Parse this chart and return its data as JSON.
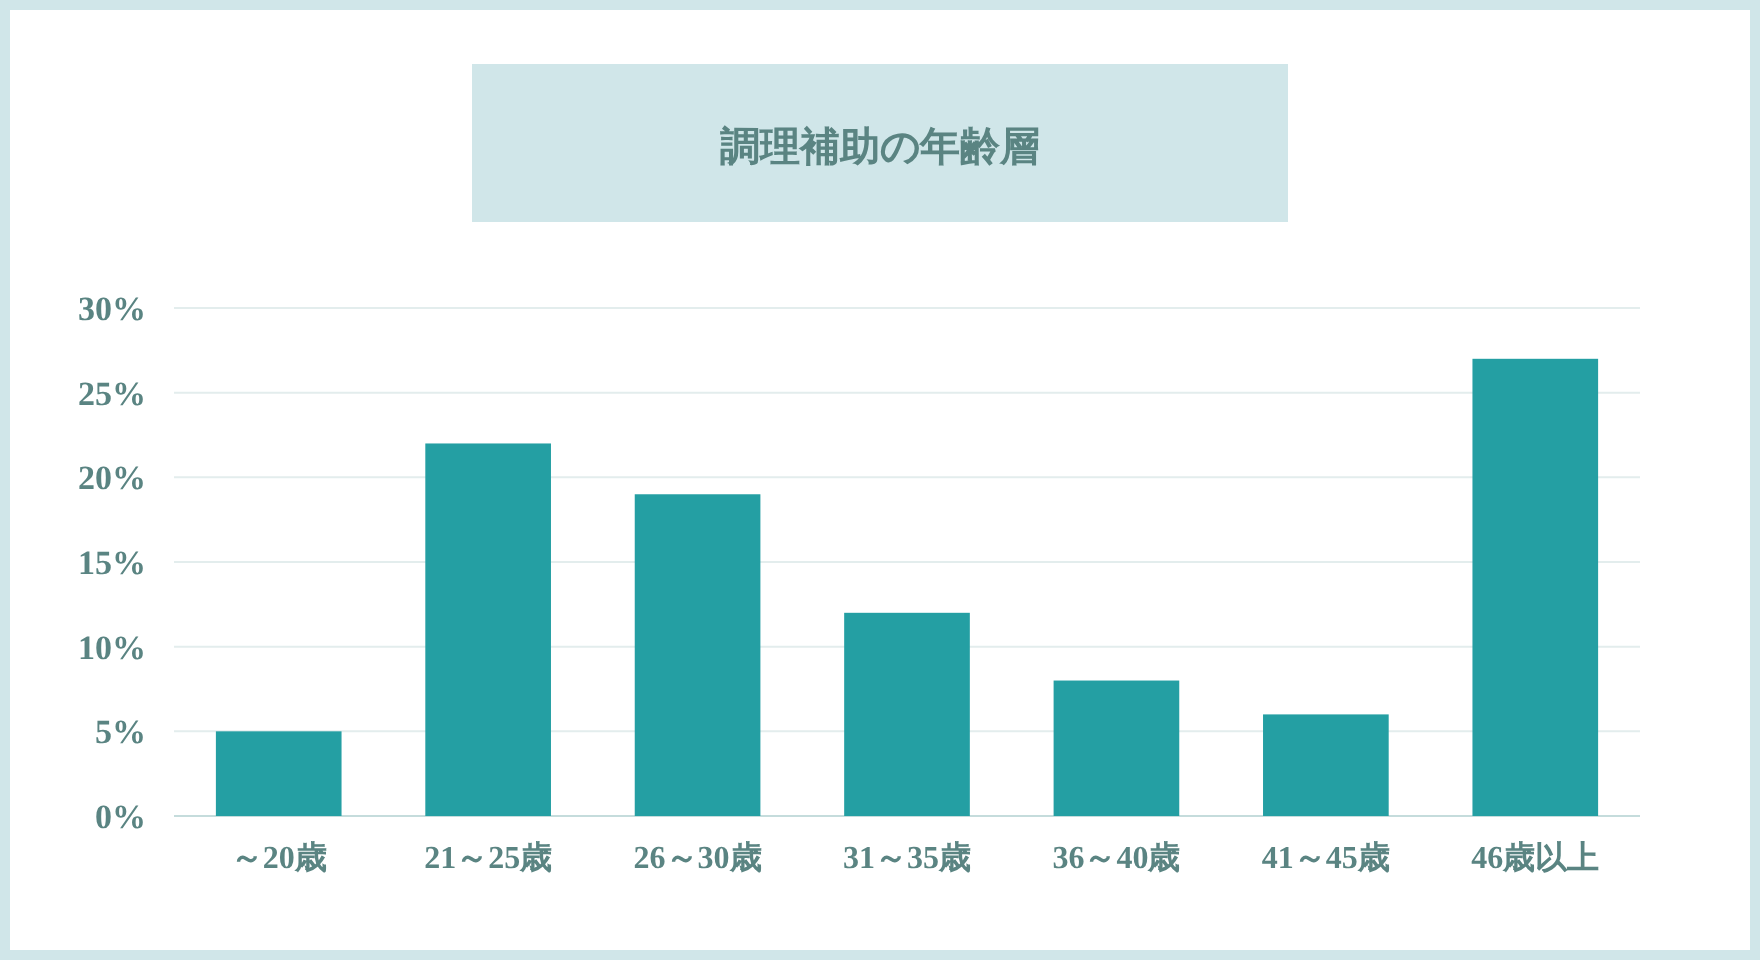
{
  "chart_data": {
    "type": "bar",
    "title": "調理補助の年齢層",
    "categories": [
      "～20歳",
      "21～25歳",
      "26～30歳",
      "31～35歳",
      "36～40歳",
      "41～45歳",
      "46歳以上"
    ],
    "values": [
      5,
      22,
      19,
      12,
      8,
      6,
      27
    ],
    "color": "#249fa3",
    "ylim": [
      0,
      30
    ],
    "yticks": [
      {
        "value": 0,
        "label": "0%"
      },
      {
        "value": 5,
        "label": "5%"
      },
      {
        "value": 10,
        "label": "10%"
      },
      {
        "value": 15,
        "label": "15%"
      },
      {
        "value": 20,
        "label": "20%"
      },
      {
        "value": 25,
        "label": "25%"
      },
      {
        "value": 30,
        "label": "30%"
      }
    ],
    "grid": "y"
  }
}
